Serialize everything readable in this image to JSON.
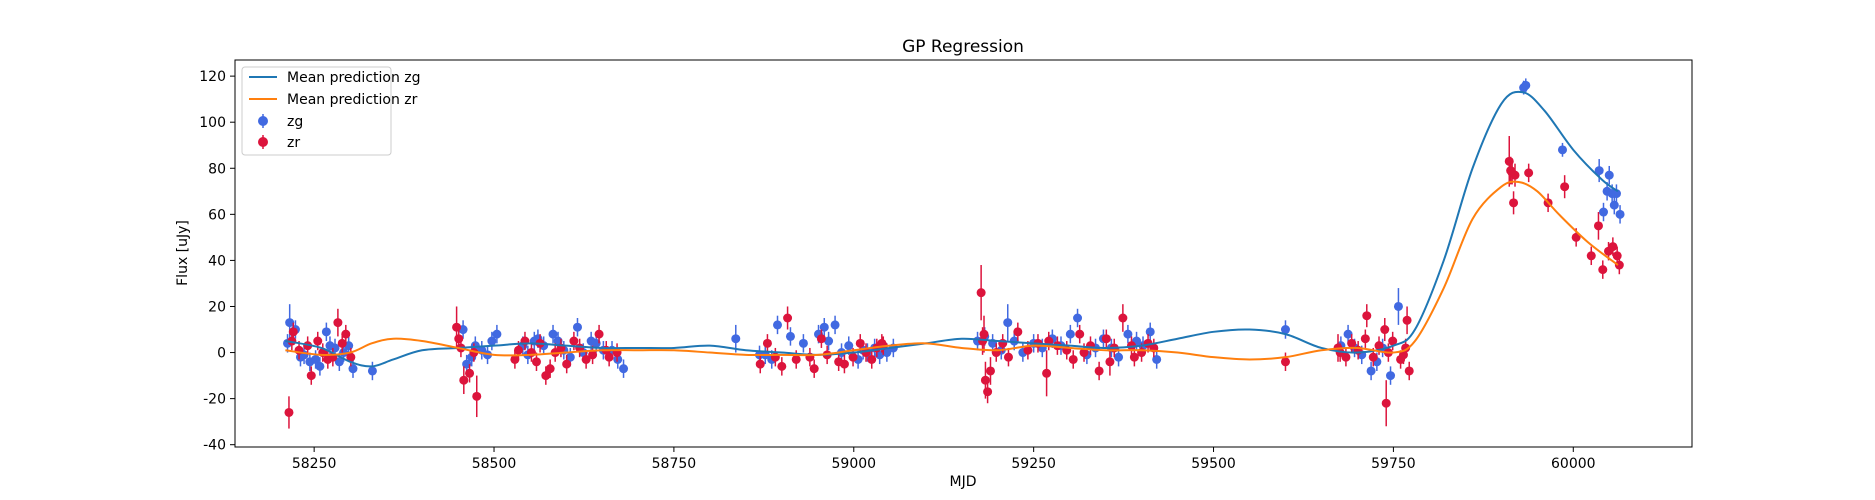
{
  "chart_data": {
    "type": "scatter",
    "title": "GP Regression",
    "xlabel": "MJD",
    "ylabel": "Flux [uJy]",
    "xlim": [
      58140,
      60165
    ],
    "ylim": [
      -41,
      127
    ],
    "xticks": [
      58250,
      58500,
      58750,
      59000,
      59250,
      59500,
      59750,
      60000
    ],
    "yticks": [
      -40,
      -20,
      0,
      20,
      40,
      60,
      80,
      100,
      120
    ],
    "grid": false,
    "legend_position": "top-left",
    "series": [
      {
        "name": "Mean prediction zg",
        "kind": "line",
        "color": "#1f77b4",
        "x": [
          58210,
          58260,
          58300,
          58330,
          58360,
          58400,
          58450,
          58500,
          58550,
          58600,
          58650,
          58700,
          58750,
          58800,
          58850,
          58900,
          58950,
          59000,
          59050,
          59100,
          59150,
          59200,
          59250,
          59300,
          59350,
          59400,
          59450,
          59500,
          59550,
          59600,
          59650,
          59700,
          59750,
          59780,
          59820,
          59860,
          59900,
          59930,
          59960,
          60000,
          60040,
          60062
        ],
        "y": [
          5,
          2,
          -4,
          -6,
          -3,
          1,
          2,
          3,
          4,
          3,
          2,
          2,
          2,
          3,
          1,
          0,
          -1,
          0,
          2,
          4,
          6,
          5,
          4,
          3,
          2,
          3,
          6,
          9,
          10,
          8,
          2,
          0,
          3,
          10,
          40,
          80,
          108,
          113,
          105,
          88,
          75,
          70
        ]
      },
      {
        "name": "Mean prediction zr",
        "kind": "line",
        "color": "#ff7f0e",
        "x": [
          58210,
          58260,
          58300,
          58330,
          58360,
          58400,
          58450,
          58500,
          58550,
          58600,
          58650,
          58700,
          58750,
          58800,
          58850,
          58900,
          58950,
          59000,
          59050,
          59100,
          59150,
          59200,
          59250,
          59300,
          59350,
          59400,
          59450,
          59500,
          59550,
          59600,
          59650,
          59700,
          59750,
          59780,
          59820,
          59860,
          59900,
          59925,
          59950,
          59980,
          60020,
          60062
        ],
        "y": [
          1,
          -1,
          0,
          4,
          6,
          5,
          2,
          -1,
          -1,
          0,
          1,
          1,
          1,
          0,
          -1,
          -1,
          -1,
          1,
          3,
          4,
          2,
          1,
          3,
          2,
          1,
          1,
          0,
          -2,
          -3,
          -2,
          1,
          2,
          0,
          5,
          28,
          58,
          72,
          74,
          70,
          60,
          48,
          38
        ]
      },
      {
        "name": "zg",
        "kind": "errorbar",
        "color": "#4169e1",
        "x": [
          58213,
          58216,
          58224,
          58231,
          58236,
          58244,
          58252,
          58258,
          58267,
          58272,
          58279,
          58285,
          58291,
          58298,
          58304,
          58331,
          58457,
          58462,
          58469,
          58474,
          58483,
          58491,
          58497,
          58504,
          58540,
          58547,
          58556,
          58561,
          58569,
          58582,
          58589,
          58597,
          58606,
          58616,
          58624,
          58635,
          58642,
          58652,
          58664,
          58672,
          58680,
          58836,
          58869,
          58877,
          58886,
          58894,
          58912,
          58930,
          58951,
          58959,
          58965,
          58974,
          58983,
          58993,
          59006,
          59013,
          59019,
          59029,
          59036,
          59046,
          59055,
          59172,
          59182,
          59193,
          59205,
          59214,
          59223,
          59235,
          59250,
          59262,
          59276,
          59288,
          59301,
          59311,
          59324,
          59336,
          59347,
          59358,
          59368,
          59381,
          59393,
          59402,
          59412,
          59421,
          59600,
          59677,
          59687,
          59696,
          59706,
          59719,
          59727,
          59735,
          59746,
          59757,
          59931,
          59934,
          59985,
          60036,
          60042,
          60047,
          60050,
          60054,
          60057,
          60060,
          60065
        ],
        "y": [
          4,
          13,
          10,
          -2,
          -1,
          -4,
          -3,
          -6,
          9,
          3,
          2,
          -4,
          0,
          3,
          -7,
          -8,
          10,
          -5,
          -2,
          3,
          1,
          -1,
          5,
          8,
          3,
          -1,
          5,
          6,
          3,
          8,
          5,
          1,
          -2,
          11,
          0,
          5,
          4,
          1,
          1,
          -3,
          -7,
          6,
          -1,
          -1,
          -3,
          12,
          7,
          4,
          8,
          11,
          5,
          12,
          0,
          3,
          -3,
          1,
          0,
          2,
          -1,
          0,
          2,
          5,
          7,
          4,
          1,
          13,
          5,
          0,
          4,
          2,
          6,
          3,
          8,
          15,
          -1,
          2,
          6,
          2,
          -2,
          8,
          5,
          3,
          9,
          -3,
          10,
          3,
          8,
          2,
          -1,
          -8,
          -4,
          2,
          -10,
          20,
          115,
          116,
          88,
          79,
          61,
          70,
          77,
          69,
          64,
          69,
          60
        ],
        "err": [
          4,
          8,
          4,
          4,
          4,
          4,
          4,
          4,
          4,
          4,
          4,
          4,
          4,
          4,
          4,
          4,
          4,
          4,
          4,
          4,
          4,
          4,
          4,
          4,
          4,
          4,
          4,
          4,
          4,
          4,
          4,
          4,
          4,
          4,
          4,
          4,
          4,
          4,
          4,
          4,
          4,
          6,
          4,
          4,
          4,
          4,
          4,
          4,
          4,
          4,
          4,
          4,
          4,
          4,
          4,
          4,
          4,
          4,
          4,
          4,
          4,
          4,
          4,
          4,
          4,
          8,
          4,
          4,
          4,
          4,
          4,
          4,
          4,
          4,
          4,
          4,
          4,
          4,
          4,
          4,
          4,
          4,
          4,
          4,
          4,
          4,
          4,
          4,
          4,
          4,
          4,
          4,
          4,
          8,
          3,
          3,
          3,
          5,
          4,
          4,
          4,
          4,
          4,
          4,
          4
        ]
      },
      {
        "name": "zr",
        "kind": "errorbar",
        "color": "#dc143c",
        "x": [
          58215,
          58219,
          58221,
          58229,
          58241,
          58246,
          58255,
          58262,
          58269,
          58276,
          58283,
          58289,
          58294,
          58301,
          58448,
          58451,
          58454,
          58458,
          58466,
          58472,
          58476,
          58529,
          58534,
          58543,
          58552,
          58559,
          58564,
          58572,
          58578,
          58585,
          58593,
          58601,
          58611,
          58619,
          58628,
          58637,
          58646,
          58656,
          58660,
          58671,
          58870,
          58880,
          58891,
          58900,
          58908,
          58920,
          58939,
          58945,
          58955,
          58963,
          58979,
          58987,
          58999,
          59009,
          59017,
          59025,
          59032,
          59039,
          59041,
          59177,
          59179,
          59181,
          59183,
          59186,
          59190,
          59198,
          59207,
          59215,
          59228,
          59242,
          59256,
          59268,
          59271,
          59283,
          59296,
          59305,
          59314,
          59320,
          59329,
          59341,
          59351,
          59356,
          59362,
          59374,
          59386,
          59390,
          59400,
          59409,
          59417,
          59600,
          59673,
          59676,
          59684,
          59692,
          59701,
          59711,
          59713,
          59722,
          59730,
          59738,
          59740,
          59743,
          59749,
          59760,
          59764,
          59767,
          59769,
          59772,
          59911,
          59913,
          59915,
          59917,
          59919,
          59938,
          59965,
          59988,
          60004,
          60025,
          60035,
          60041,
          60049,
          60055,
          60061,
          60064
        ],
        "y": [
          -26,
          5,
          9,
          1,
          3,
          -10,
          5,
          0,
          -3,
          -2,
          13,
          4,
          8,
          -2,
          11,
          6,
          2,
          -12,
          -9,
          0,
          -19,
          -3,
          1,
          5,
          0,
          -4,
          4,
          -10,
          -7,
          0,
          2,
          -5,
          5,
          2,
          -3,
          -1,
          8,
          1,
          -2,
          0,
          -5,
          4,
          -2,
          -6,
          15,
          -3,
          -2,
          -7,
          6,
          -1,
          -4,
          -5,
          -2,
          4,
          0,
          -3,
          2,
          4,
          3,
          26,
          5,
          8,
          -12,
          -17,
          -8,
          0,
          4,
          -2,
          9,
          1,
          4,
          -9,
          5,
          3,
          1,
          -3,
          8,
          0,
          3,
          -8,
          6,
          -4,
          2,
          15,
          3,
          -2,
          0,
          4,
          2,
          -4,
          2,
          0,
          -2,
          4,
          1,
          6,
          16,
          -2,
          3,
          10,
          -22,
          0,
          5,
          -3,
          -1,
          2,
          14,
          -8,
          83,
          79,
          78,
          65,
          77,
          78,
          65,
          72,
          50,
          42,
          55,
          36,
          44,
          46,
          42,
          38
        ],
        "err": [
          7,
          4,
          4,
          4,
          4,
          4,
          4,
          4,
          4,
          4,
          6,
          4,
          4,
          4,
          9,
          4,
          4,
          6,
          4,
          4,
          9,
          4,
          4,
          4,
          4,
          4,
          4,
          4,
          4,
          4,
          4,
          4,
          4,
          4,
          4,
          4,
          4,
          4,
          4,
          4,
          4,
          4,
          4,
          4,
          5,
          4,
          4,
          4,
          4,
          4,
          4,
          4,
          4,
          4,
          4,
          4,
          4,
          4,
          4,
          12,
          6,
          8,
          8,
          5,
          6,
          4,
          4,
          4,
          4,
          4,
          4,
          10,
          4,
          4,
          4,
          4,
          4,
          4,
          4,
          4,
          4,
          6,
          4,
          6,
          4,
          4,
          4,
          4,
          4,
          4,
          6,
          4,
          4,
          4,
          4,
          4,
          5,
          4,
          4,
          5,
          10,
          4,
          4,
          4,
          4,
          4,
          6,
          4,
          11,
          6,
          5,
          5,
          5,
          4,
          4,
          5,
          4,
          4,
          6,
          4,
          4,
          4,
          4,
          4
        ]
      }
    ]
  }
}
